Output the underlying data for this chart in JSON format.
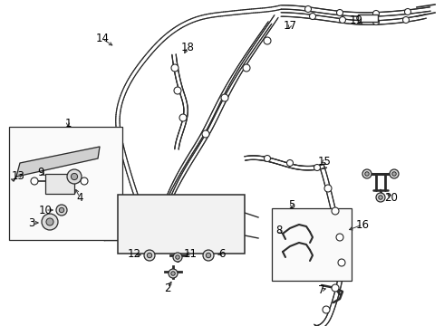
{
  "bg_color": "#ffffff",
  "line_color": "#2a2a2a",
  "text_color": "#000000",
  "figsize": [
    4.9,
    3.6
  ],
  "dpi": 100
}
